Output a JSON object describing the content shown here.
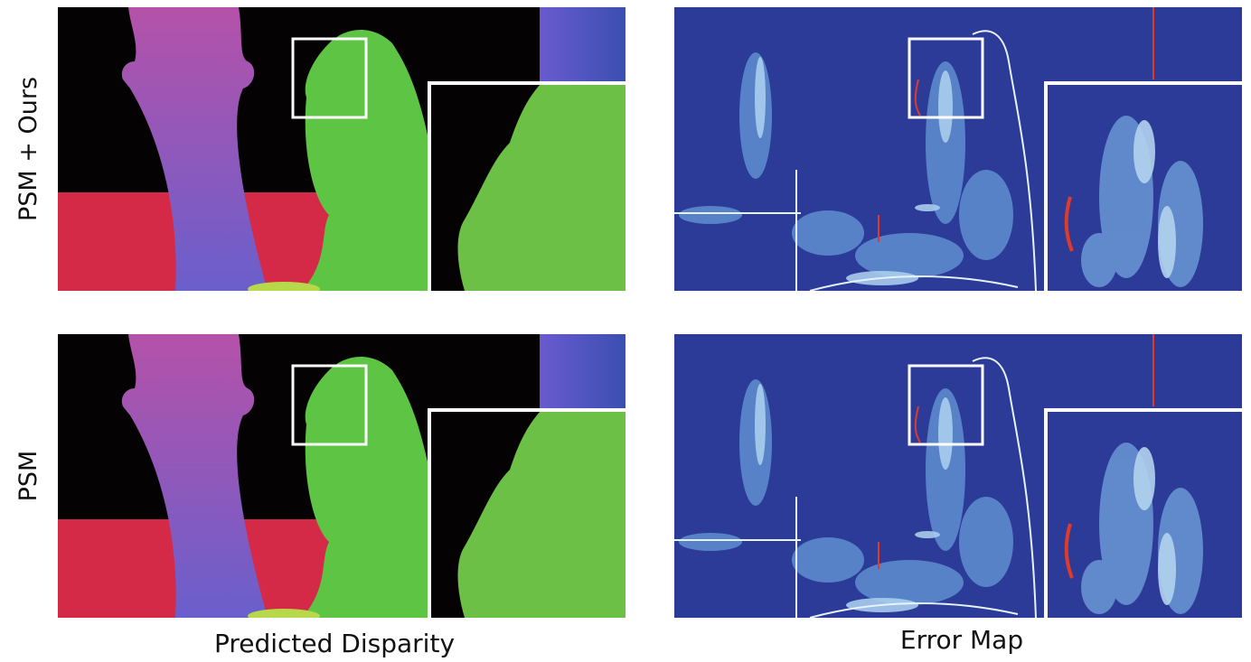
{
  "row_labels": [
    "PSM + Ours",
    "PSM"
  ],
  "column_labels": [
    "Predicted Disparity",
    "Error Map"
  ]
}
